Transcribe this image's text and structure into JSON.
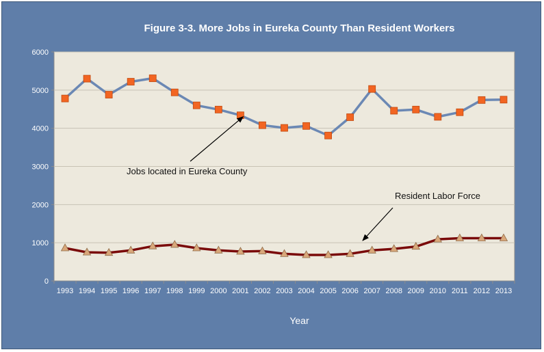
{
  "chart_data": {
    "type": "line",
    "title": "Figure 3-3. More Jobs in Eureka County Than Resident Workers",
    "xlabel": "Year",
    "ylabel": "",
    "x": [
      "1993",
      "1994",
      "1995",
      "1996",
      "1997",
      "1998",
      "1999",
      "2000",
      "2001",
      "2002",
      "2003",
      "2004",
      "2005",
      "2006",
      "2007",
      "2008",
      "2009",
      "2010",
      "2011",
      "2012",
      "2013"
    ],
    "ylim": [
      0,
      6000
    ],
    "yticks": [
      0,
      1000,
      2000,
      3000,
      4000,
      5000,
      6000
    ],
    "grid": true,
    "series": [
      {
        "name": "Jobs located in Eureka County",
        "values": [
          4780,
          5300,
          4880,
          5220,
          5310,
          4940,
          4600,
          4490,
          4340,
          4080,
          4010,
          4060,
          3810,
          4290,
          5030,
          4460,
          4490,
          4300,
          4420,
          4740,
          4750
        ],
        "line_color": "#6b88b4",
        "marker_color": "#f26522",
        "marker": "square"
      },
      {
        "name": "Resident Labor Force",
        "values": [
          860,
          750,
          740,
          800,
          910,
          950,
          860,
          800,
          770,
          780,
          710,
          680,
          680,
          710,
          800,
          840,
          900,
          1090,
          1120,
          1120,
          1120
        ],
        "line_color": "#7a0a0a",
        "marker_color": "#d9a77a",
        "marker": "triangle"
      }
    ],
    "annotations": [
      {
        "text": "Jobs located in Eureka County",
        "series": 0
      },
      {
        "text": "Resident Labor Force",
        "series": 1
      }
    ],
    "plot_background": "#ede9dd"
  }
}
